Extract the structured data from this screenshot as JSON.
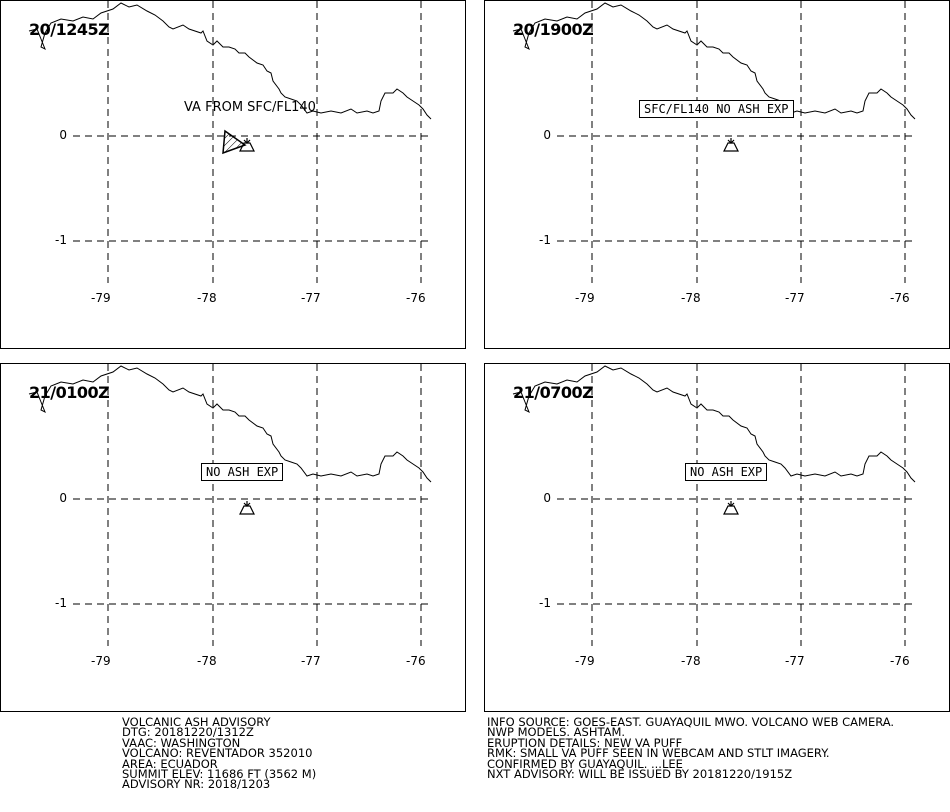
{
  "panels": [
    {
      "time": "20/1245Z",
      "label": "VA FROM SFC/FL140",
      "label_style": "plain",
      "ash_polygon": true
    },
    {
      "time": "20/1900Z",
      "label": "SFC/FL140 NO ASH EXP",
      "label_style": "box",
      "ash_polygon": false
    },
    {
      "time": "21/0100Z",
      "label": "NO ASH EXP",
      "label_style": "box",
      "ash_polygon": false
    },
    {
      "time": "21/0700Z",
      "label": "NO ASH EXP",
      "label_style": "box",
      "ash_polygon": false
    }
  ],
  "axes": {
    "lon_ticks": [
      "-79",
      "-78",
      "-77",
      "-76"
    ],
    "lat_ticks": [
      "0",
      "-1"
    ]
  },
  "advisory_left": [
    "VOLCANIC ASH ADVISORY",
    "DTG: 20181220/1312Z",
    "VAAC: WASHINGTON",
    "VOLCANO: REVENTADOR 352010",
    "AREA: ECUADOR",
    "SUMMIT ELEV: 11686 FT (3562 M)",
    "ADVISORY NR: 2018/1203"
  ],
  "advisory_right": [
    "INFO SOURCE: GOES-EAST. GUAYAQUIL MWO. VOLCANO WEB CAMERA.",
    "NWP MODELS. ASHTAM.",
    "ERUPTION DETAILS: NEW VA PUFF",
    "RMK: SMALL VA PUFF SEEN IN WEBCAM AND STLT IMAGERY.",
    "CONFIRMED BY GUAYAQUIL. ...LEE",
    "NXT ADVISORY: WILL BE ISSUED BY 20181220/1915Z"
  ],
  "colors": {
    "line": "#000000",
    "background": "#ffffff"
  },
  "icons": {
    "volcano": "volcano-icon",
    "ash_area": "ash-polygon"
  }
}
